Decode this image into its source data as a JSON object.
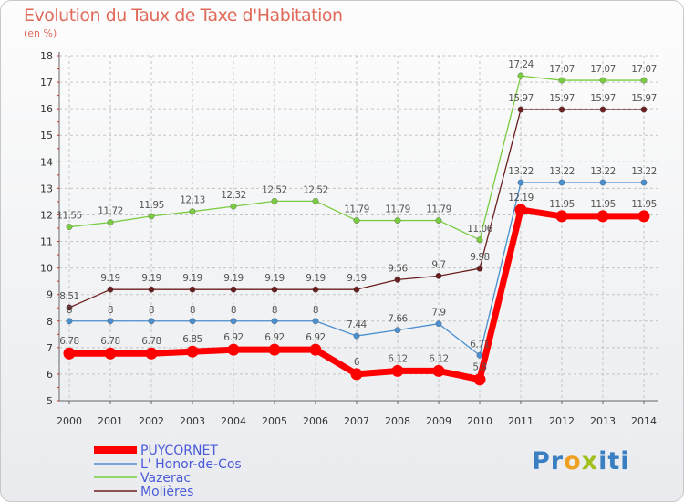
{
  "title": "Evolution du Taux de Taxe d'Habitation",
  "subtitle": "(en %)",
  "brand": {
    "part1": "Pr",
    "part2": "o",
    "part3": "x",
    "part4": "iti"
  },
  "chart_data": {
    "type": "line",
    "title": "Evolution du Taux de Taxe d'Habitation",
    "ylabel": "(en %)",
    "x": [
      2000,
      2001,
      2002,
      2003,
      2004,
      2005,
      2006,
      2007,
      2008,
      2009,
      2010,
      2011,
      2012,
      2013,
      2014
    ],
    "ylim": [
      5,
      18
    ],
    "yticks": [
      5,
      6,
      7,
      8,
      9,
      10,
      11,
      12,
      13,
      14,
      15,
      16,
      17,
      18
    ],
    "legend_position": "bottom-left",
    "series": [
      {
        "name": "Vazerac",
        "color": "#7acc40",
        "width": 1.3,
        "values": [
          11.55,
          11.72,
          11.95,
          12.13,
          12.32,
          12.52,
          12.52,
          11.79,
          11.79,
          11.79,
          11.06,
          17.24,
          17.07,
          17.07,
          17.07
        ],
        "labels": [
          "11.55",
          "11.72",
          "11.95",
          "12.13",
          "12.32",
          "12.52",
          "12.52",
          "11.79",
          "11.79",
          "11.79",
          "11.06",
          "17.24",
          "17.07",
          "17.07",
          "17.07"
        ]
      },
      {
        "name": "Molières",
        "color": "#6b1e1e",
        "width": 1.3,
        "values": [
          8.51,
          9.19,
          9.19,
          9.19,
          9.19,
          9.19,
          9.19,
          9.19,
          9.56,
          9.7,
          9.98,
          15.97,
          15.97,
          15.97,
          15.97
        ],
        "labels": [
          "8.51",
          "9.19",
          "9.19",
          "9.19",
          "9.19",
          "9.19",
          "9.19",
          "9.19",
          "9.56",
          "9.7",
          "9.98",
          "15.97",
          "15.97",
          "15.97",
          "15.97"
        ]
      },
      {
        "name": "L' Honor-de-Cos",
        "color": "#4a90d0",
        "width": 1.3,
        "values": [
          8,
          8,
          8,
          8,
          8,
          8,
          8,
          7.44,
          7.66,
          7.9,
          6.71,
          13.22,
          13.22,
          13.22,
          13.22
        ],
        "labels": [
          "8",
          "8",
          "8",
          "8",
          "8",
          "8",
          "8",
          "7.44",
          "7.66",
          "7.9",
          "6.71",
          "13.22",
          "13.22",
          "13.22",
          "13.22"
        ]
      },
      {
        "name": "PUYCORNET",
        "color": "#ff0000",
        "width": 7,
        "values": [
          6.78,
          6.78,
          6.78,
          6.85,
          6.92,
          6.92,
          6.92,
          6,
          6.12,
          6.12,
          5.8,
          12.19,
          11.95,
          11.95,
          11.95
        ],
        "labels": [
          "6.78",
          "6.78",
          "6.78",
          "6.85",
          "6.92",
          "6.92",
          "6.92",
          "6",
          "6.12",
          "6.12",
          "5.8",
          "12.19",
          "11.95",
          "11.95",
          "11.95"
        ]
      }
    ],
    "legend": [
      "PUYCORNET",
      "L' Honor-de-Cos",
      "Vazerac",
      "Molières"
    ]
  }
}
